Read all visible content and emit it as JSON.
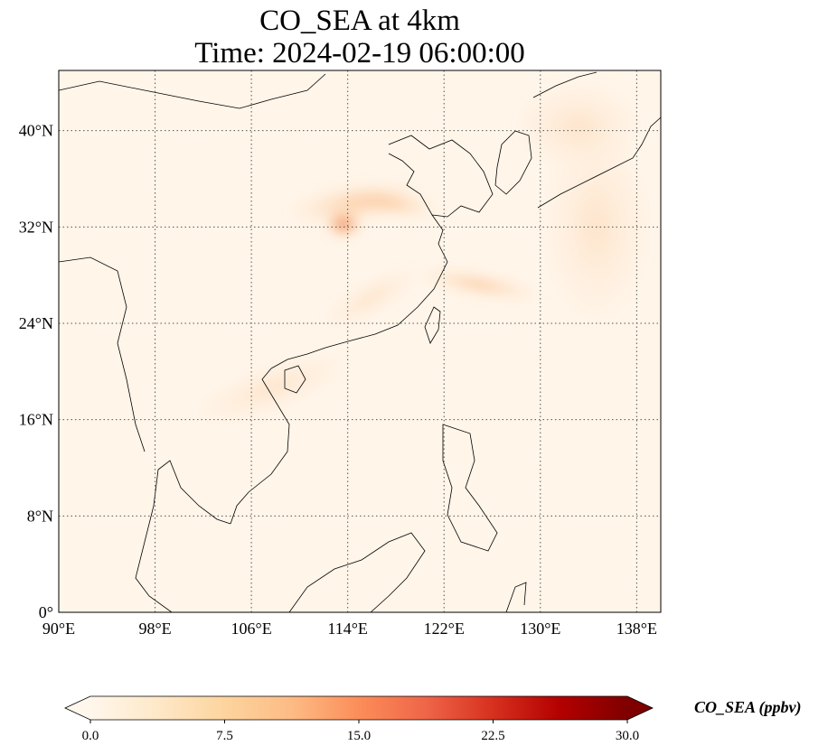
{
  "title_line1": "CO_SEA at 4km",
  "title_line2": "Time: 2024-02-19 06:00:00",
  "map": {
    "lon_range": [
      90,
      140
    ],
    "lat_range": [
      0,
      45
    ],
    "gridlines": "dotted",
    "lon_ticks": [
      {
        "value": 90,
        "label": "90°E"
      },
      {
        "value": 98,
        "label": "98°E"
      },
      {
        "value": 106,
        "label": "106°E"
      },
      {
        "value": 114,
        "label": "114°E"
      },
      {
        "value": 122,
        "label": "122°E"
      },
      {
        "value": 130,
        "label": "130°E"
      },
      {
        "value": 138,
        "label": "138°E"
      }
    ],
    "lat_ticks": [
      {
        "value": 0,
        "label": "0°"
      },
      {
        "value": 8,
        "label": "8°N"
      },
      {
        "value": 16,
        "label": "16°N"
      },
      {
        "value": 24,
        "label": "24°N"
      },
      {
        "value": 32,
        "label": "32°N"
      },
      {
        "value": 40,
        "label": "40°N"
      }
    ],
    "background_color": "#fff5e9",
    "hotspot": {
      "lon": 114,
      "lat": 32.2,
      "approx_value": 15
    }
  },
  "colorbar": {
    "label": "CO_SEA (ppbv)",
    "min": 0,
    "max": 30,
    "extend": "both",
    "colormap": "OrRd",
    "stops": [
      "#fff7ec",
      "#fee8c8",
      "#fdd49e",
      "#fdbb84",
      "#fc8d59",
      "#ef6548",
      "#d7301f",
      "#b30000",
      "#7f0000"
    ],
    "ticks": [
      {
        "value": 0,
        "label": "0.0"
      },
      {
        "value": 7.5,
        "label": "7.5"
      },
      {
        "value": 15,
        "label": "15.0"
      },
      {
        "value": 22.5,
        "label": "22.5"
      },
      {
        "value": 30,
        "label": "30.0"
      }
    ]
  }
}
